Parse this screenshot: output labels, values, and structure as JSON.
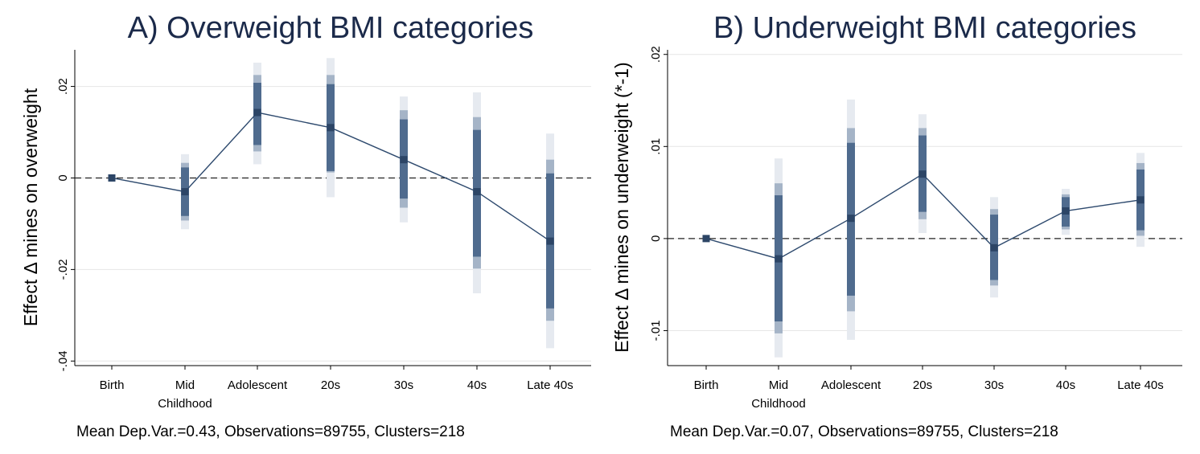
{
  "chart_data": [
    {
      "type": "scatter",
      "title": "A) Overweight BMI categories",
      "ylabel": "Effect Δ mines  on overweight",
      "note": "Mean Dep.Var.=0.43, Observations=89755, Clusters=218",
      "categories": [
        "Birth",
        "Mid\nChildhood",
        "Adolescent",
        "20s",
        "30s",
        "40s",
        "Late 40s"
      ],
      "ylim": [
        -0.041,
        0.028
      ],
      "yticks": [
        0.02,
        0,
        -0.02,
        -0.04
      ],
      "ytick_labels": [
        ".02",
        "0",
        "-.02",
        "-.04"
      ],
      "reference_line": 0,
      "series": [
        {
          "values": [
            0,
            -0.003,
            0.0143,
            0.011,
            0.004,
            -0.003,
            -0.0138
          ],
          "ci_90": [
            [
              0,
              0
            ],
            [
              -0.0083,
              0.0023
            ],
            [
              0.0072,
              0.0208
            ],
            [
              0.0015,
              0.0205
            ],
            [
              -0.0045,
              0.0128
            ],
            [
              -0.0172,
              0.0105
            ],
            [
              -0.0285,
              0.001
            ]
          ],
          "ci_95": [
            [
              0,
              0
            ],
            [
              -0.0093,
              0.0033
            ],
            [
              0.0058,
              0.0225
            ],
            [
              0.0012,
              0.0225
            ],
            [
              -0.0065,
              0.0148
            ],
            [
              -0.0198,
              0.0133
            ],
            [
              -0.0312,
              0.004
            ]
          ],
          "ci_99": [
            [
              0,
              0
            ],
            [
              -0.0112,
              0.0052
            ],
            [
              0.003,
              0.0252
            ],
            [
              -0.0042,
              0.0262
            ],
            [
              -0.0097,
              0.0178
            ],
            [
              -0.0252,
              0.0187
            ],
            [
              -0.0372,
              0.0097
            ]
          ]
        }
      ]
    },
    {
      "type": "scatter",
      "title": "B) Underweight BMI categories",
      "ylabel": "Effect Δ mines  on underweight (*-1)",
      "note": "Mean Dep.Var.=0.07, Observations=89755, Clusters=218",
      "categories": [
        "Birth",
        "Mid\nChildhood",
        "Adolescent",
        "20s",
        "30s",
        "40s",
        "Late 40s"
      ],
      "ylim": [
        -0.0138,
        0.0205
      ],
      "yticks": [
        0.02,
        0.01,
        0,
        -0.01
      ],
      "ytick_labels": [
        ".02",
        ".01",
        "0",
        "-.01"
      ],
      "reference_line": 0,
      "series": [
        {
          "values": [
            0,
            -0.0022,
            0.0022,
            0.007,
            -0.001,
            0.003,
            0.0042
          ],
          "ci_90": [
            [
              0,
              0
            ],
            [
              -0.009,
              0.0047
            ],
            [
              -0.0062,
              0.0104
            ],
            [
              0.0029,
              0.0112
            ],
            [
              -0.0045,
              0.0026
            ],
            [
              0.0013,
              0.0045
            ],
            [
              0.0009,
              0.0075
            ]
          ],
          "ci_95": [
            [
              0,
              0
            ],
            [
              -0.0103,
              0.006
            ],
            [
              -0.0079,
              0.012
            ],
            [
              0.0021,
              0.012
            ],
            [
              -0.0051,
              0.0032
            ],
            [
              0.001,
              0.0048
            ],
            [
              0.0003,
              0.0082
            ]
          ],
          "ci_99": [
            [
              0,
              0
            ],
            [
              -0.0129,
              0.0087
            ],
            [
              -0.011,
              0.0151
            ],
            [
              0.0006,
              0.0135
            ],
            [
              -0.0064,
              0.0045
            ],
            [
              0.0004,
              0.0054
            ],
            [
              -0.0009,
              0.0093
            ]
          ]
        }
      ]
    }
  ]
}
